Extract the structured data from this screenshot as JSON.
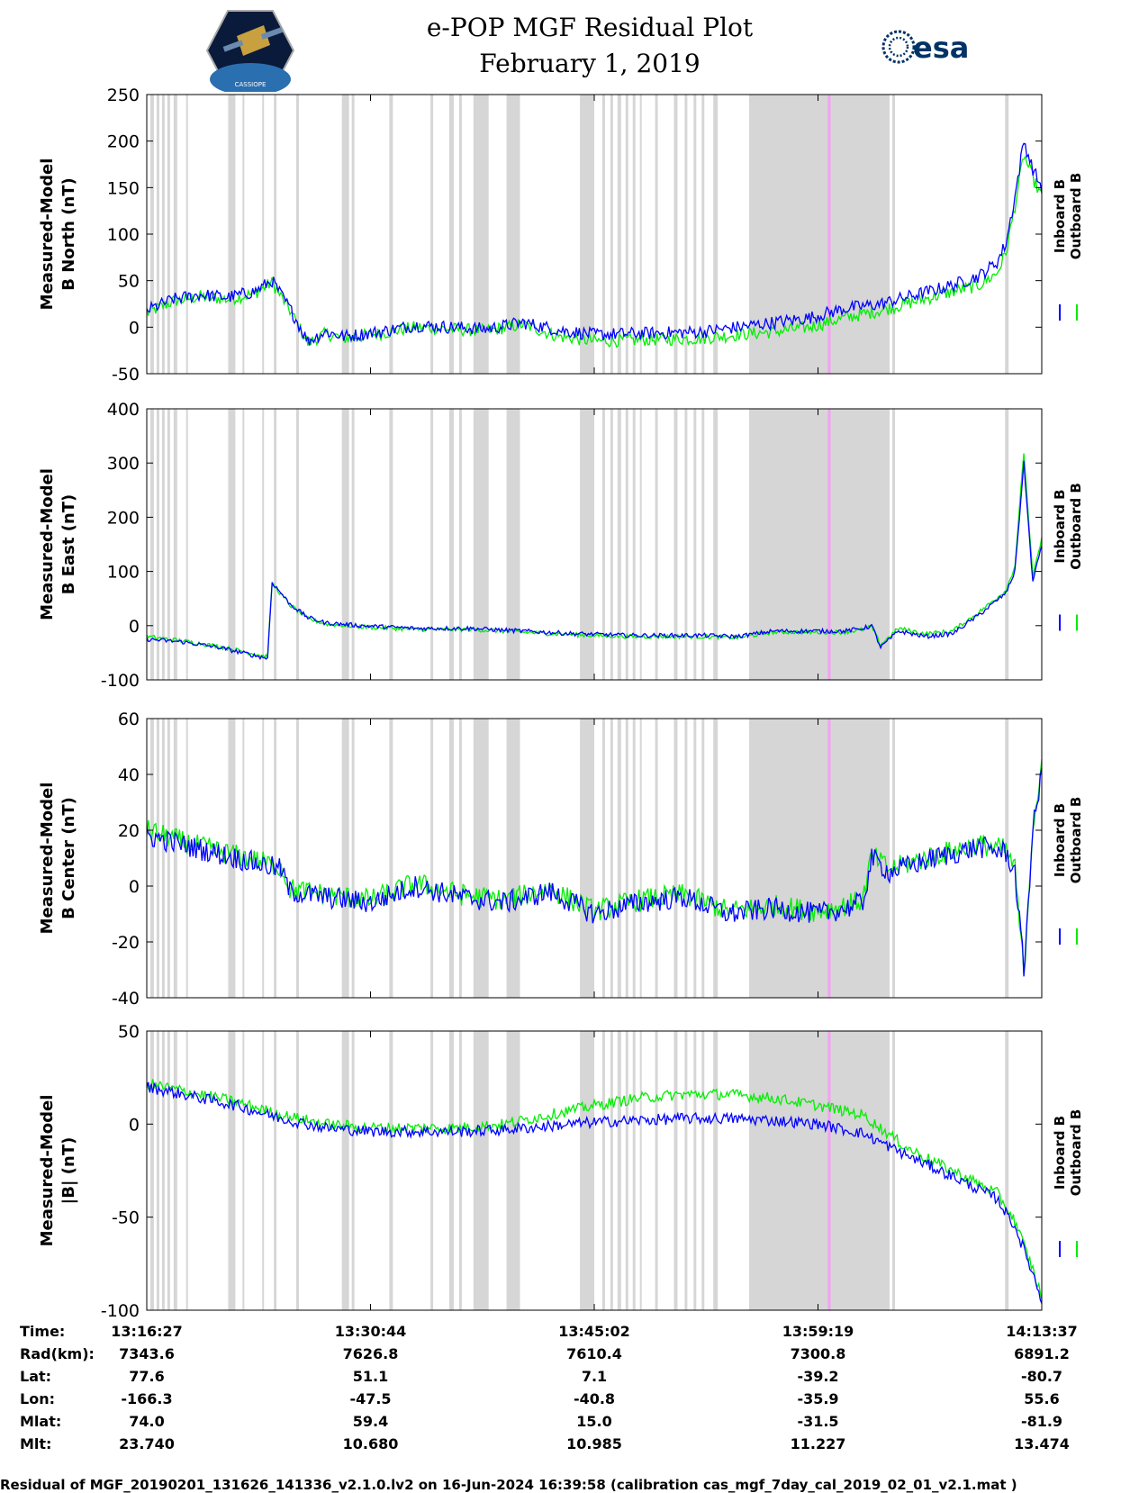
{
  "header": {
    "title_line1": "e-POP MGF Residual Plot",
    "title_line2": "February 1, 2019",
    "logo_left": "CASSIOPE",
    "logo_right": "esa"
  },
  "legend": {
    "inboard": "Inboard B",
    "outboard": "Outboard B"
  },
  "colors": {
    "inboard": "#0000ff",
    "outboard": "#00ee00",
    "shade": "#d6d6d6",
    "marker": "#f5a0f5"
  },
  "shaded_intervals_fraction": [
    [
      0.004,
      0.008
    ],
    [
      0.011,
      0.014
    ],
    [
      0.017,
      0.02
    ],
    [
      0.023,
      0.026
    ],
    [
      0.03,
      0.034
    ],
    [
      0.044,
      0.046
    ],
    [
      0.091,
      0.099
    ],
    [
      0.107,
      0.109
    ],
    [
      0.129,
      0.131
    ],
    [
      0.142,
      0.145
    ],
    [
      0.167,
      0.17
    ],
    [
      0.218,
      0.226
    ],
    [
      0.229,
      0.232
    ],
    [
      0.271,
      0.275
    ],
    [
      0.317,
      0.32
    ],
    [
      0.338,
      0.343
    ],
    [
      0.349,
      0.352
    ],
    [
      0.365,
      0.382
    ],
    [
      0.402,
      0.417
    ],
    [
      0.484,
      0.5
    ],
    [
      0.509,
      0.512
    ],
    [
      0.518,
      0.521
    ],
    [
      0.526,
      0.53
    ],
    [
      0.535,
      0.538
    ],
    [
      0.543,
      0.546
    ],
    [
      0.551,
      0.553
    ],
    [
      0.568,
      0.571
    ],
    [
      0.589,
      0.593
    ],
    [
      0.601,
      0.604
    ],
    [
      0.611,
      0.614
    ],
    [
      0.62,
      0.623
    ],
    [
      0.633,
      0.638
    ],
    [
      0.673,
      0.83
    ],
    [
      0.833,
      0.836
    ],
    [
      0.959,
      0.963
    ]
  ],
  "marker_fraction": 0.761,
  "chart_data": [
    {
      "type": "line",
      "id": "north",
      "ylabel": [
        "Measured-Model",
        "B North (nT)"
      ],
      "ylim": [
        -50,
        250
      ],
      "yticks": [
        -50,
        0,
        50,
        100,
        150,
        200,
        250
      ],
      "x": [
        0,
        0.03,
        0.06,
        0.09,
        0.12,
        0.14,
        0.16,
        0.18,
        0.2,
        0.22,
        0.26,
        0.3,
        0.34,
        0.38,
        0.42,
        0.46,
        0.5,
        0.54,
        0.58,
        0.62,
        0.66,
        0.7,
        0.74,
        0.78,
        0.82,
        0.86,
        0.9,
        0.93,
        0.95,
        0.96,
        0.97,
        0.98,
        0.99,
        1.0
      ],
      "series": [
        {
          "name": "Inboard B",
          "values": [
            18,
            30,
            35,
            32,
            38,
            50,
            20,
            -15,
            -5,
            -10,
            -5,
            2,
            0,
            -2,
            5,
            -3,
            -8,
            -7,
            -6,
            -5,
            0,
            5,
            10,
            20,
            25,
            35,
            45,
            55,
            70,
            90,
            140,
            200,
            170,
            150
          ]
        },
        {
          "name": "Outboard B",
          "values": [
            15,
            28,
            33,
            30,
            36,
            48,
            18,
            -17,
            -7,
            -12,
            -7,
            0,
            -2,
            -4,
            3,
            -10,
            -15,
            -14,
            -13,
            -12,
            -8,
            -5,
            0,
            10,
            18,
            28,
            38,
            45,
            58,
            80,
            130,
            185,
            160,
            140
          ]
        }
      ],
      "noise": 7
    },
    {
      "type": "line",
      "id": "east",
      "ylabel": [
        "Measured-Model",
        "B East (nT)"
      ],
      "ylim": [
        -100,
        400
      ],
      "yticks": [
        -100,
        0,
        100,
        200,
        300,
        400
      ],
      "x": [
        0,
        0.04,
        0.08,
        0.12,
        0.135,
        0.14,
        0.16,
        0.18,
        0.2,
        0.24,
        0.3,
        0.36,
        0.42,
        0.48,
        0.54,
        0.62,
        0.66,
        0.7,
        0.74,
        0.78,
        0.8,
        0.81,
        0.82,
        0.84,
        0.87,
        0.9,
        0.93,
        0.96,
        0.97,
        0.98,
        0.99,
        1.0
      ],
      "series": [
        {
          "name": "Inboard B",
          "values": [
            -25,
            -30,
            -40,
            -55,
            -60,
            80,
            40,
            15,
            5,
            0,
            -5,
            -5,
            -10,
            -15,
            -18,
            -18,
            -20,
            -10,
            -10,
            -10,
            -5,
            0,
            -40,
            -10,
            -20,
            -15,
            20,
            60,
            100,
            300,
            80,
            150
          ]
        },
        {
          "name": "Outboard B",
          "values": [
            -20,
            -28,
            -38,
            -52,
            -57,
            78,
            38,
            13,
            3,
            -2,
            -7,
            -7,
            -12,
            -17,
            -20,
            -20,
            -22,
            -12,
            -12,
            -12,
            -7,
            -2,
            -35,
            -5,
            -15,
            -10,
            25,
            65,
            110,
            320,
            90,
            160
          ]
        }
      ],
      "noise": 4
    },
    {
      "type": "line",
      "id": "center",
      "ylabel": [
        "Measured-Model",
        "B Center (nT)"
      ],
      "ylim": [
        -40,
        60
      ],
      "yticks": [
        -40,
        -20,
        0,
        20,
        40,
        60
      ],
      "x": [
        0,
        0.05,
        0.1,
        0.15,
        0.16,
        0.2,
        0.25,
        0.3,
        0.35,
        0.4,
        0.45,
        0.5,
        0.55,
        0.6,
        0.65,
        0.7,
        0.75,
        0.78,
        0.8,
        0.81,
        0.83,
        0.88,
        0.93,
        0.96,
        0.97,
        0.98,
        0.99,
        1.0
      ],
      "series": [
        {
          "name": "Inboard B",
          "values": [
            18,
            14,
            10,
            6,
            -2,
            -4,
            -6,
            0,
            -4,
            -6,
            -2,
            -10,
            -6,
            -4,
            -10,
            -8,
            -10,
            -8,
            -6,
            10,
            5,
            10,
            14,
            12,
            5,
            -30,
            20,
            40
          ]
        },
        {
          "name": "Outboard B",
          "values": [
            20,
            15,
            11,
            7,
            -1,
            -3,
            -5,
            1,
            -3,
            -5,
            -1,
            -9,
            -5,
            -3,
            -9,
            -7,
            -9,
            -7,
            -5,
            11,
            6,
            11,
            15,
            13,
            6,
            -32,
            22,
            42
          ]
        }
      ],
      "noise": 4
    },
    {
      "type": "line",
      "id": "total",
      "ylabel": [
        "Measured-Model",
        "|B| (nT)"
      ],
      "ylim": [
        -100,
        50
      ],
      "yticks": [
        -100,
        -50,
        0,
        50
      ],
      "x": [
        0,
        0.05,
        0.1,
        0.15,
        0.2,
        0.25,
        0.3,
        0.35,
        0.4,
        0.45,
        0.5,
        0.55,
        0.6,
        0.65,
        0.7,
        0.75,
        0.8,
        0.85,
        0.9,
        0.95,
        0.97,
        0.99,
        1.0
      ],
      "series": [
        {
          "name": "Inboard B",
          "values": [
            20,
            15,
            10,
            3,
            -2,
            -4,
            -4,
            -4,
            -3,
            -1,
            1,
            2,
            3,
            3,
            2,
            0,
            -5,
            -17,
            -28,
            -40,
            -55,
            -80,
            -95
          ]
        },
        {
          "name": "Outboard B",
          "values": [
            22,
            17,
            12,
            5,
            0,
            -2,
            -2,
            -2,
            0,
            5,
            10,
            14,
            16,
            16,
            14,
            10,
            5,
            -13,
            -25,
            -37,
            -52,
            -78,
            -93
          ]
        }
      ],
      "noise": 3
    }
  ],
  "ephemeris": {
    "row_labels": [
      "Time:",
      "Rad(km):",
      "Lat:",
      "Lon:",
      "Mlat:",
      "Mlt:"
    ],
    "columns": [
      [
        "13:16:27",
        "7343.6",
        "77.6",
        "-166.3",
        "74.0",
        "23.740"
      ],
      [
        "13:30:44",
        "7626.8",
        "51.1",
        "-47.5",
        "59.4",
        "10.680"
      ],
      [
        "13:45:02",
        "7610.4",
        "7.1",
        "-40.8",
        "15.0",
        "10.985"
      ],
      [
        "13:59:19",
        "7300.8",
        "-39.2",
        "-35.9",
        "-31.5",
        "11.227"
      ],
      [
        "14:13:37",
        "6891.2",
        "-80.7",
        "55.6",
        "-81.9",
        "13.474"
      ]
    ]
  },
  "footer": "Residual of MGF_20190201_131626_141336_v2.1.0.lv2 on 16-Jun-2024 16:39:58 (calibration cas_mgf_7day_cal_2019_02_01_v2.1.mat )"
}
